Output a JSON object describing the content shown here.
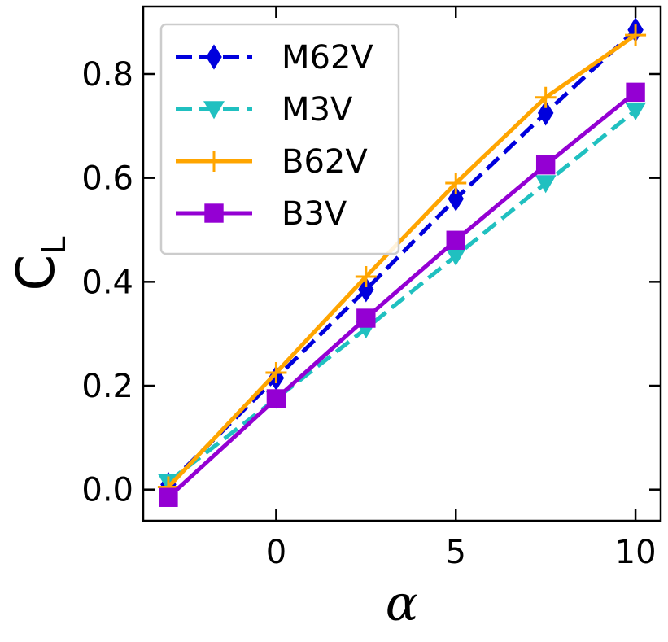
{
  "chart_data": {
    "type": "line",
    "title": "",
    "xlabel": "α",
    "ylabel": "C",
    "ylabel_subscript": "L",
    "xlim": [
      -3.7,
      10.7
    ],
    "ylim": [
      -0.06,
      0.93
    ],
    "xticks": [
      0,
      5,
      10
    ],
    "xtick_labels": [
      "0",
      "5",
      "10"
    ],
    "yticks": [
      0.0,
      0.2,
      0.4,
      0.6,
      0.8
    ],
    "ytick_labels": [
      "0.0",
      "0.2",
      "0.4",
      "0.6",
      "0.8"
    ],
    "grid": false,
    "legend_position": "top-left",
    "x": [
      -3,
      0,
      2.5,
      5,
      7.5,
      10
    ],
    "series": [
      {
        "name": "M62V",
        "color": "#0000dd",
        "style": "dashed",
        "marker": "diamond",
        "values": [
          0.01,
          0.215,
          0.385,
          0.56,
          0.725,
          0.885
        ]
      },
      {
        "name": "M3V",
        "color": "#20c0c0",
        "style": "dashed",
        "marker": "triangle-down",
        "values": [
          0.015,
          0.175,
          0.31,
          0.45,
          0.59,
          0.73
        ]
      },
      {
        "name": "B62V",
        "color": "#ffa500",
        "style": "solid",
        "marker": "plus",
        "values": [
          0.005,
          0.225,
          0.41,
          0.59,
          0.755,
          0.875
        ]
      },
      {
        "name": "B3V",
        "color": "#9400d3",
        "style": "solid",
        "marker": "square",
        "values": [
          -0.015,
          0.175,
          0.33,
          0.48,
          0.625,
          0.765
        ]
      }
    ]
  }
}
